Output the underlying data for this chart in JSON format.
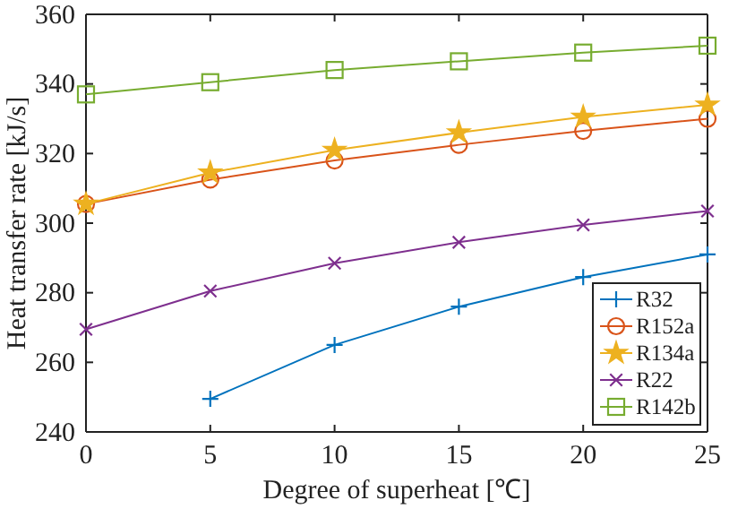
{
  "chart_data": {
    "type": "line",
    "xlabel": "Degree of superheat [℃]",
    "ylabel": "Heat transfer rate [kJ/s]",
    "x": [
      0,
      5,
      10,
      15,
      20,
      25
    ],
    "series": [
      {
        "name": "R32",
        "color": "#0072bd",
        "marker": "plus",
        "values": [
          null,
          249.5,
          265,
          276,
          284.5,
          291
        ]
      },
      {
        "name": "R152a",
        "color": "#d95319",
        "marker": "circle",
        "values": [
          305.5,
          312.5,
          318,
          322.5,
          326.5,
          330
        ]
      },
      {
        "name": "R134a",
        "color": "#edb120",
        "marker": "star",
        "values": [
          305.5,
          314.5,
          321,
          326,
          330.5,
          334
        ]
      },
      {
        "name": "R22",
        "color": "#7e2f8e",
        "marker": "cross",
        "values": [
          269.5,
          280.5,
          288.5,
          294.5,
          299.5,
          303.5
        ]
      },
      {
        "name": "R142b",
        "color": "#77ac30",
        "marker": "square",
        "values": [
          337,
          340.5,
          344,
          346.5,
          349,
          351
        ]
      }
    ],
    "xlim": [
      0,
      25
    ],
    "xticks": [
      0,
      5,
      10,
      15,
      20,
      25
    ],
    "ylim": [
      240,
      360
    ],
    "yticks": [
      240,
      260,
      280,
      300,
      320,
      340,
      360
    ],
    "grid": false,
    "legend": "bottom right",
    "line_style": "solid"
  }
}
